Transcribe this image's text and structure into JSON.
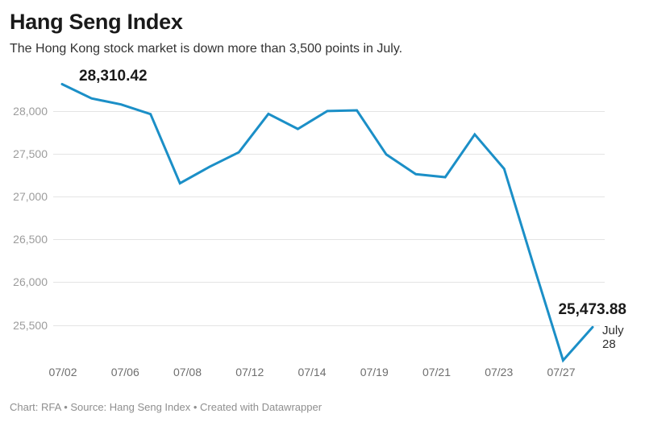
{
  "header": {
    "title": "Hang Seng Index",
    "subtitle": "The Hong Kong stock market is down more than 3,500 points in July."
  },
  "annotations": {
    "first_value": "28,310.42",
    "last_value": "25,473.88",
    "last_date": "July\n28"
  },
  "footer": {
    "text": "Chart: RFA • Source: Hang Seng Index • Created with Datawrapper"
  },
  "colors": {
    "line": "#1b8fc7",
    "grid": "#e4e4e4",
    "y_tick_text": "#9c9c9c",
    "x_tick_text": "#6e6e6e",
    "title_text": "#1a1a1a",
    "annotation_text": "#1a1a1a",
    "footer_text": "#8f8f8f"
  },
  "chart_data": {
    "type": "line",
    "title": "Hang Seng Index",
    "subtitle": "The Hong Kong stock market is down more than 3,500 points in July.",
    "x": [
      "07/02",
      "07/05",
      "07/06",
      "07/07",
      "07/08",
      "07/09",
      "07/12",
      "07/13",
      "07/14",
      "07/15",
      "07/16",
      "07/19",
      "07/20",
      "07/21",
      "07/22",
      "07/23",
      "07/26",
      "07/27",
      "07/28"
    ],
    "values": [
      28310.42,
      28143.5,
      28072.86,
      27960.62,
      27153.13,
      27344.54,
      27515.24,
      27963.41,
      27787.46,
      27996.27,
      28004.68,
      27489.78,
      27259.25,
      27224.58,
      27723.84,
      27321.98,
      26192.32,
      25086.43,
      25473.88
    ],
    "first_point_label": "28,310.42",
    "last_point_label": "25,473.88",
    "last_point_date_label": "July 28",
    "y_ticks": [
      28000,
      27500,
      27000,
      26500,
      26000,
      25500
    ],
    "y_tick_labels": [
      "28,000",
      "27,500",
      "27,000",
      "26,500",
      "26,000",
      "25,500"
    ],
    "x_tick_labels": [
      "07/02",
      "07/06",
      "07/08",
      "07/12",
      "07/14",
      "07/19",
      "07/21",
      "07/23",
      "07/27"
    ],
    "ylim": [
      25086.43,
      28310.42
    ],
    "grid": "horizontal-only",
    "legend": "none"
  }
}
